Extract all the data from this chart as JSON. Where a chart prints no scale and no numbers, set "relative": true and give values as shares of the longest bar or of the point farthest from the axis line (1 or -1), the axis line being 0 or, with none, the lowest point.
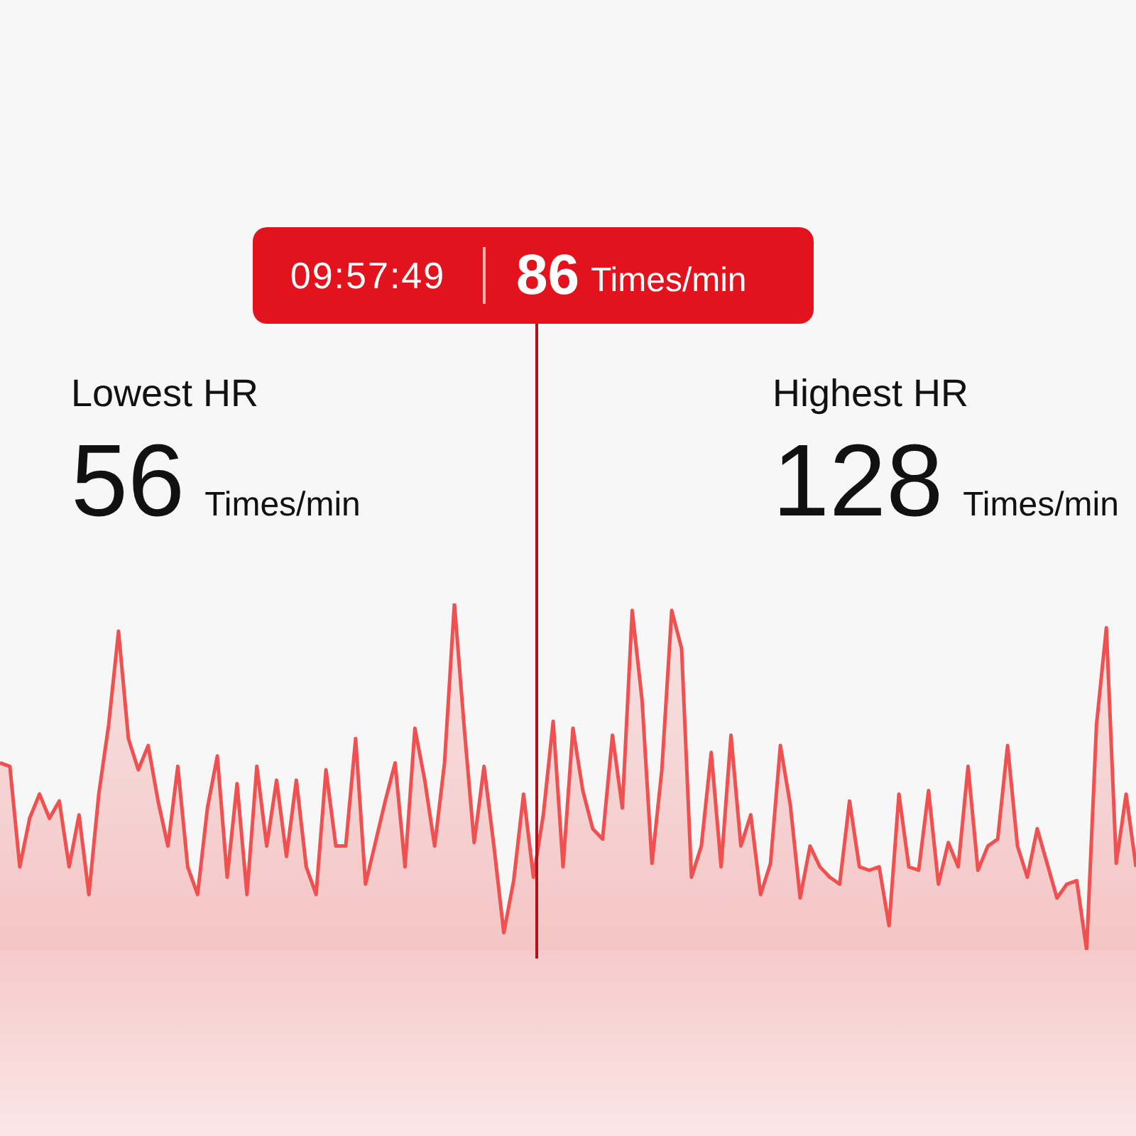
{
  "chart_data": {
    "type": "area",
    "relative": true,
    "categories": [
      null,
      null,
      null,
      null,
      null,
      null,
      null,
      null,
      null,
      null,
      null,
      null,
      null,
      null,
      null,
      null,
      null,
      null,
      null,
      null,
      null,
      null,
      null,
      null,
      null,
      null,
      null,
      null,
      null,
      null,
      null,
      null,
      null,
      null,
      null,
      null,
      null,
      null,
      null,
      null,
      null,
      null,
      null,
      null,
      null,
      null,
      null,
      null,
      null,
      null,
      null,
      null,
      null,
      null,
      null,
      null,
      null,
      null,
      null,
      null,
      null,
      null,
      null,
      null,
      null,
      null,
      null,
      null,
      null,
      null,
      null,
      null,
      null,
      null,
      null,
      null,
      null,
      null,
      null,
      null,
      null,
      null,
      null,
      null,
      null,
      null,
      null,
      null,
      null,
      null,
      null,
      null,
      null,
      null,
      null,
      null,
      null,
      null,
      null,
      null,
      null,
      null,
      null,
      null,
      null,
      null,
      null,
      null,
      null,
      null,
      null,
      null,
      null,
      null,
      null,
      null
    ],
    "series": [
      {
        "color": "#f05050",
        "values": [
          0.54,
          0.53,
          0.24,
          0.38,
          0.45,
          0.38,
          0.43,
          0.24,
          0.39,
          0.16,
          0.45,
          0.65,
          0.92,
          0.61,
          0.52,
          0.59,
          0.43,
          0.3,
          0.53,
          0.24,
          0.16,
          0.41,
          0.56,
          0.21,
          0.48,
          0.16,
          0.53,
          0.3,
          0.49,
          0.27,
          0.49,
          0.24,
          0.16,
          0.52,
          0.3,
          0.3,
          0.61,
          0.19,
          0.31,
          0.43,
          0.54,
          0.24,
          0.64,
          0.49,
          0.3,
          0.54,
          1,
          0.64,
          0.31,
          0.53,
          0.3,
          0.05,
          0.2,
          0.45,
          0.21,
          0.39,
          0.66,
          0.24,
          0.64,
          0.46,
          0.35,
          0.32,
          0.62,
          0.41,
          0.98,
          0.72,
          0.25,
          0.52,
          0.98,
          0.87,
          0.21,
          0.3,
          0.57,
          0.24,
          0.62,
          0.3,
          0.39,
          0.16,
          0.25,
          0.59,
          0.42,
          0.15,
          0.3,
          0.24,
          0.21,
          0.19,
          0.43,
          0.24,
          0.23,
          0.24,
          0.07,
          0.45,
          0.24,
          0.23,
          0.46,
          0.19,
          0.31,
          0.24,
          0.53,
          0.23,
          0.3,
          0.32,
          0.59,
          0.3,
          0.21,
          0.35,
          0.25,
          0.15,
          0.19,
          0.2,
          0,
          0.65,
          0.93,
          0.25,
          0.45,
          0.24
        ]
      }
    ],
    "annotations": [
      "09:57:49",
      "86",
      "Times/min",
      "Lowest HR",
      "56",
      "Times/min",
      "Highest HR",
      "128",
      "Times/min"
    ]
  }
}
